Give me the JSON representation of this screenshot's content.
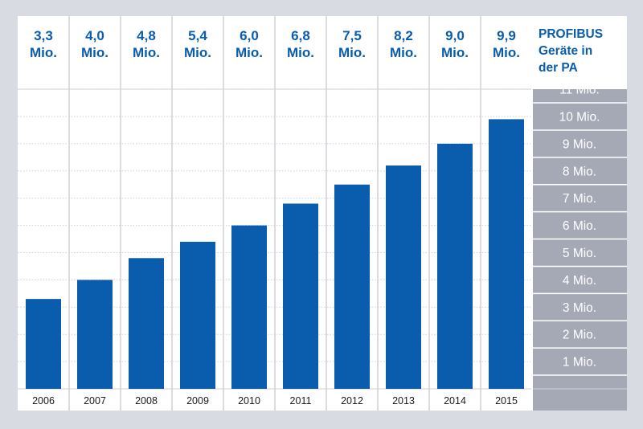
{
  "chart_data": {
    "type": "bar",
    "categories": [
      "2006",
      "2007",
      "2008",
      "2009",
      "2010",
      "2011",
      "2012",
      "2013",
      "2014",
      "2015"
    ],
    "values": [
      3.3,
      4.0,
      4.8,
      5.4,
      6.0,
      6.8,
      7.5,
      8.2,
      9.0,
      9.9
    ],
    "value_labels": [
      [
        "3,3",
        "Mio."
      ],
      [
        "4,0",
        "Mio."
      ],
      [
        "4,8",
        "Mio."
      ],
      [
        "5,4",
        "Mio."
      ],
      [
        "6,0",
        "Mio."
      ],
      [
        "6,8",
        "Mio."
      ],
      [
        "7,5",
        "Mio."
      ],
      [
        "8,2",
        "Mio."
      ],
      [
        "9,0",
        "Mio."
      ],
      [
        "9,9",
        "Mio."
      ]
    ],
    "y_ticks": [
      {
        "value": 1,
        "label": "1 Mio."
      },
      {
        "value": 2,
        "label": "2 Mio."
      },
      {
        "value": 3,
        "label": "3 Mio."
      },
      {
        "value": 4,
        "label": "4 Mio."
      },
      {
        "value": 5,
        "label": "5 Mio."
      },
      {
        "value": 6,
        "label": "6 Mio."
      },
      {
        "value": 7,
        "label": "7 Mio."
      },
      {
        "value": 8,
        "label": "8 Mio."
      },
      {
        "value": 9,
        "label": "9 Mio."
      },
      {
        "value": 10,
        "label": "10 Mio."
      },
      {
        "value": 11,
        "label": "11 Mio."
      }
    ],
    "ylim": [
      0,
      11.5
    ],
    "legend": [
      "PROFIBUS",
      "Geräte in",
      "der PA"
    ],
    "grid": true,
    "axis_side": "right",
    "colors": {
      "bar": "#0a5cad",
      "label": "#0a5cad",
      "axis_panel": "#a5a9b6",
      "grid": "#cfd2da",
      "background": "#d9dbe3"
    }
  }
}
